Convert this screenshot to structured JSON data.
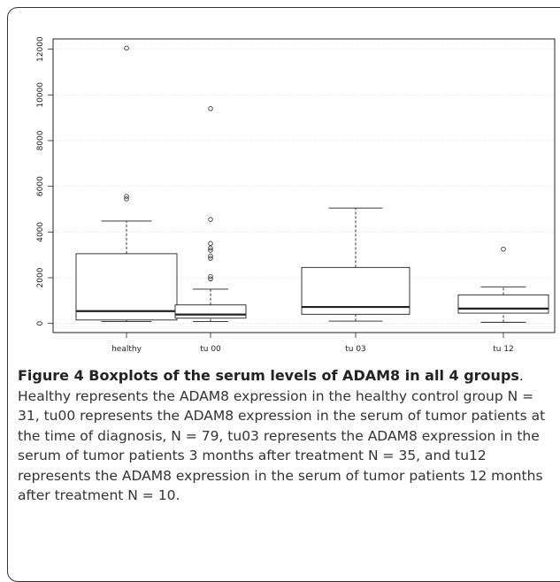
{
  "chart_data": {
    "type": "boxplot",
    "categories": [
      "healthy",
      "tu 00",
      "tu 03",
      "tu 12"
    ],
    "min": [
      80,
      80,
      100,
      50
    ],
    "q1": [
      150,
      230,
      400,
      450
    ],
    "median": [
      540,
      390,
      720,
      650
    ],
    "q3": [
      3050,
      810,
      2450,
      1250
    ],
    "max": [
      4480,
      1500,
      5050,
      1600
    ],
    "outliers": [
      [
        5450,
        5560,
        12050
      ],
      [
        1950,
        2050,
        2850,
        2950,
        3200,
        3300,
        3500,
        4550,
        9400
      ],
      [],
      [
        3250
      ]
    ],
    "ylim": [
      -400,
      12450
    ],
    "yticks": [
      0,
      2000,
      4000,
      6000,
      8000,
      10000,
      12000
    ],
    "grid": true
  },
  "caption": {
    "title": "Figure 4 Boxplots of the serum levels of ADAM8 in all 4 groups",
    "text": ". Healthy represents the ADAM8 expression in the healthy control group N = 31, tu00 represents the ADAM8 expression in the serum of tumor patients at the time of diagnosis, N = 79, tu03 represents the ADAM8 expression in the serum of tumor patients 3 months after treatment N = 35, and tu12 represents the ADAM8 expression in the serum of tumor patients 12 months after treatment N = 10."
  }
}
